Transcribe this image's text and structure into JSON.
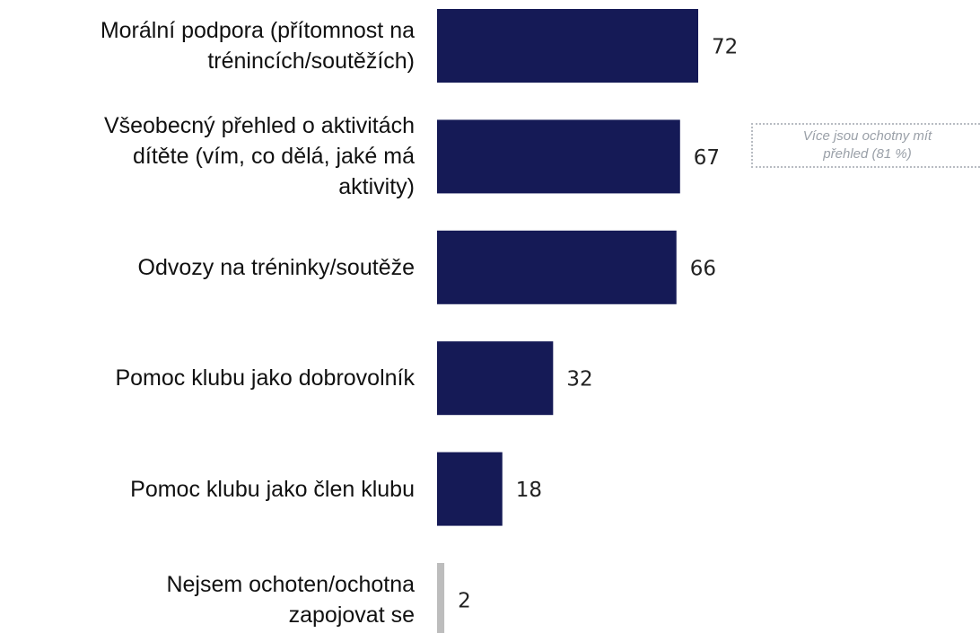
{
  "chart_data": {
    "type": "barh",
    "categories": [
      "Morální podpora (přítomnost na\ntrénincích/soutěžích)",
      "Všeobecný přehled o aktivitách\ndítěte (vím, co dělá, jaké má\naktivity)",
      "Odvozy na tréninky/soutěže",
      "Pomoc klubu jako dobrovolník",
      "Pomoc klubu jako člen klubu",
      "Nejsem ochoten/ochotna\nzapojovat se"
    ],
    "values": [
      72,
      67,
      66,
      32,
      18,
      2
    ],
    "colors": [
      "#151a56",
      "#151a56",
      "#151a56",
      "#151a56",
      "#151a56",
      "#bdbdbd"
    ],
    "annotation": "Více jsou ochotny mít přehled (81 %)"
  }
}
